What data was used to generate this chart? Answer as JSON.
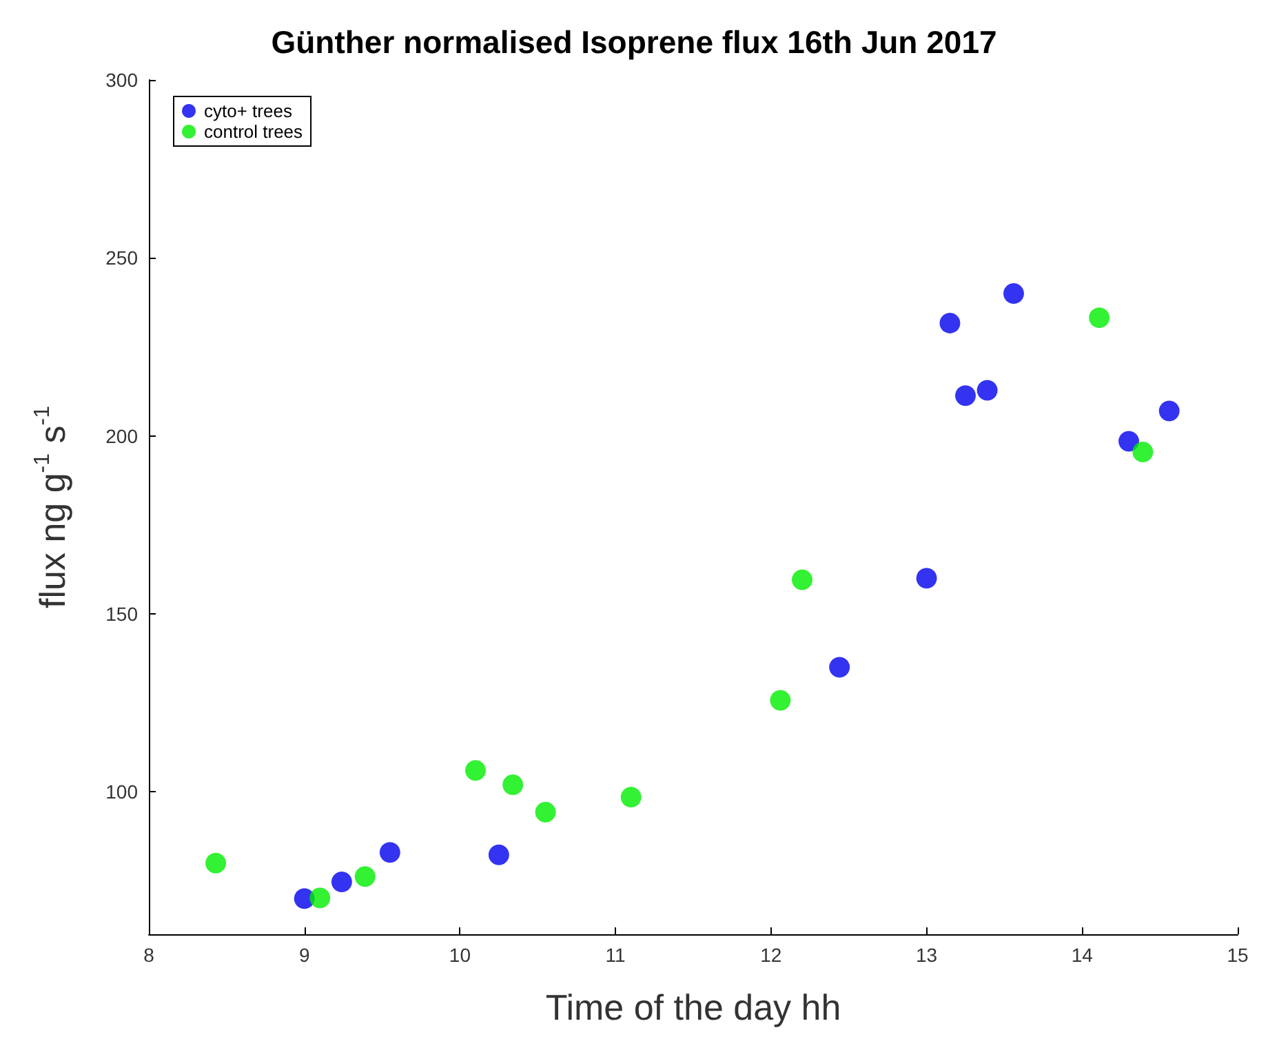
{
  "chart_data": {
    "type": "scatter",
    "title": "Günther normalised Isoprene flux 16th Jun 2017",
    "xlabel": "Time of the day hh",
    "ylabel": "flux ng g$^{-1}$ s$^{-1}$",
    "xlim": [
      8,
      15
    ],
    "xticks": [
      8,
      9,
      10,
      11,
      12,
      13,
      14,
      15
    ],
    "ylim": [
      60,
      300
    ],
    "yticks": [
      100,
      150,
      200,
      250,
      300
    ],
    "grid": false,
    "legend": "top left",
    "marker": "circle",
    "series": [
      {
        "name": "cyto+ trees",
        "color": "#0000ee",
        "x": [
          9.0,
          9.24,
          9.55,
          10.25,
          12.44,
          13.0,
          13.15,
          13.25,
          13.39,
          13.56,
          14.3,
          14.56
        ],
        "values": [
          70,
          74.7,
          83,
          82.3,
          135,
          160,
          231.7,
          211.3,
          212.8,
          240,
          198.5,
          207
        ]
      },
      {
        "name": "control trees",
        "color": "#00ee00",
        "x": [
          8.43,
          9.1,
          9.39,
          10.1,
          10.34,
          10.55,
          11.1,
          12.06,
          12.2,
          14.11,
          14.39
        ],
        "values": [
          80,
          70.2,
          76.2,
          106,
          102,
          94.3,
          98.5,
          125.7,
          159.6,
          233.2,
          195.5
        ]
      }
    ]
  }
}
